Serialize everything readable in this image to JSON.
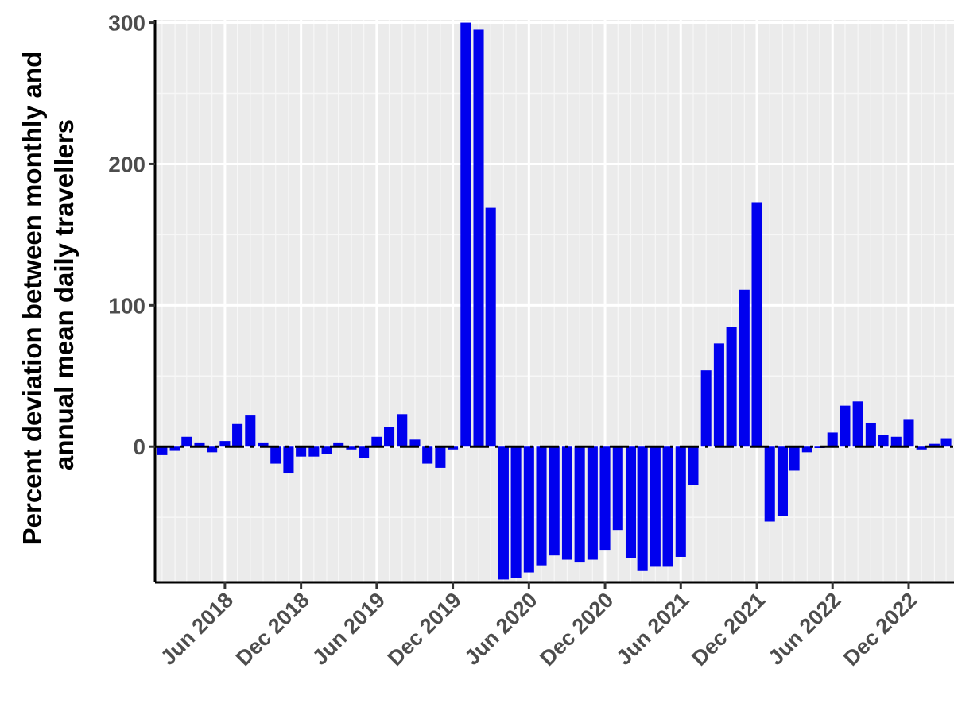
{
  "chart_data": {
    "type": "bar",
    "ylabel_lines": [
      "Percent deviation between monthly and",
      "annual mean daily travellers"
    ],
    "xlabel": "",
    "title": "",
    "ylim": [
      -96,
      302
    ],
    "y_ticks": [
      0,
      100,
      200,
      300
    ],
    "x_ticks": [
      {
        "date": "2018-06-01",
        "label": "Jun 2018"
      },
      {
        "date": "2018-12-01",
        "label": "Dec 2018"
      },
      {
        "date": "2019-06-01",
        "label": "Jun 2019"
      },
      {
        "date": "2019-12-01",
        "label": "Dec 2019"
      },
      {
        "date": "2020-06-01",
        "label": "Jun 2020"
      },
      {
        "date": "2020-12-01",
        "label": "Dec 2020"
      },
      {
        "date": "2021-06-01",
        "label": "Jun 2021"
      },
      {
        "date": "2021-12-01",
        "label": "Dec 2021"
      },
      {
        "date": "2022-06-01",
        "label": "Jun 2022"
      },
      {
        "date": "2022-12-01",
        "label": "Dec 2022"
      }
    ],
    "x_range": [
      "2017-12-15",
      "2023-03-20"
    ],
    "reference_line": 0,
    "bar_color": "#0000ee",
    "panel_background": "#ebebeb",
    "grid": true,
    "dates": [
      "2018-01-01",
      "2018-02-01",
      "2018-03-01",
      "2018-04-01",
      "2018-05-01",
      "2018-06-01",
      "2018-07-01",
      "2018-08-01",
      "2018-09-01",
      "2018-10-01",
      "2018-11-01",
      "2018-12-01",
      "2019-01-01",
      "2019-02-01",
      "2019-03-01",
      "2019-04-01",
      "2019-05-01",
      "2019-06-01",
      "2019-07-01",
      "2019-08-01",
      "2019-09-01",
      "2019-10-01",
      "2019-11-01",
      "2019-12-01",
      "2020-01-01",
      "2020-02-01",
      "2020-03-01",
      "2020-04-01",
      "2020-05-01",
      "2020-06-01",
      "2020-07-01",
      "2020-08-01",
      "2020-09-01",
      "2020-10-01",
      "2020-11-01",
      "2020-12-01",
      "2021-01-01",
      "2021-02-01",
      "2021-03-01",
      "2021-04-01",
      "2021-05-01",
      "2021-06-01",
      "2021-07-01",
      "2021-08-01",
      "2021-09-01",
      "2021-10-01",
      "2021-11-01",
      "2021-12-01",
      "2022-01-01",
      "2022-02-01",
      "2022-03-01",
      "2022-04-01",
      "2022-05-01",
      "2022-06-01",
      "2022-07-01",
      "2022-08-01",
      "2022-09-01",
      "2022-10-01",
      "2022-11-01",
      "2022-12-01",
      "2023-01-01",
      "2023-02-01",
      "2023-03-01"
    ],
    "values": [
      -6,
      -3,
      7,
      3,
      -4,
      4,
      16,
      22,
      3,
      -12,
      -19,
      -7,
      -7,
      -5,
      3,
      -2,
      -8,
      7,
      14,
      23,
      5,
      -12,
      -15,
      -2,
      300,
      295,
      169,
      -94,
      -93,
      -89,
      -84,
      -77,
      -80,
      -82,
      -80,
      -73,
      -59,
      -79,
      -88,
      -85,
      -85,
      -78,
      -27,
      54,
      73,
      85,
      111,
      173,
      -53,
      -49,
      -17,
      -4,
      -1,
      10,
      29,
      32,
      17,
      8,
      7,
      19,
      -2,
      2,
      6
    ]
  }
}
